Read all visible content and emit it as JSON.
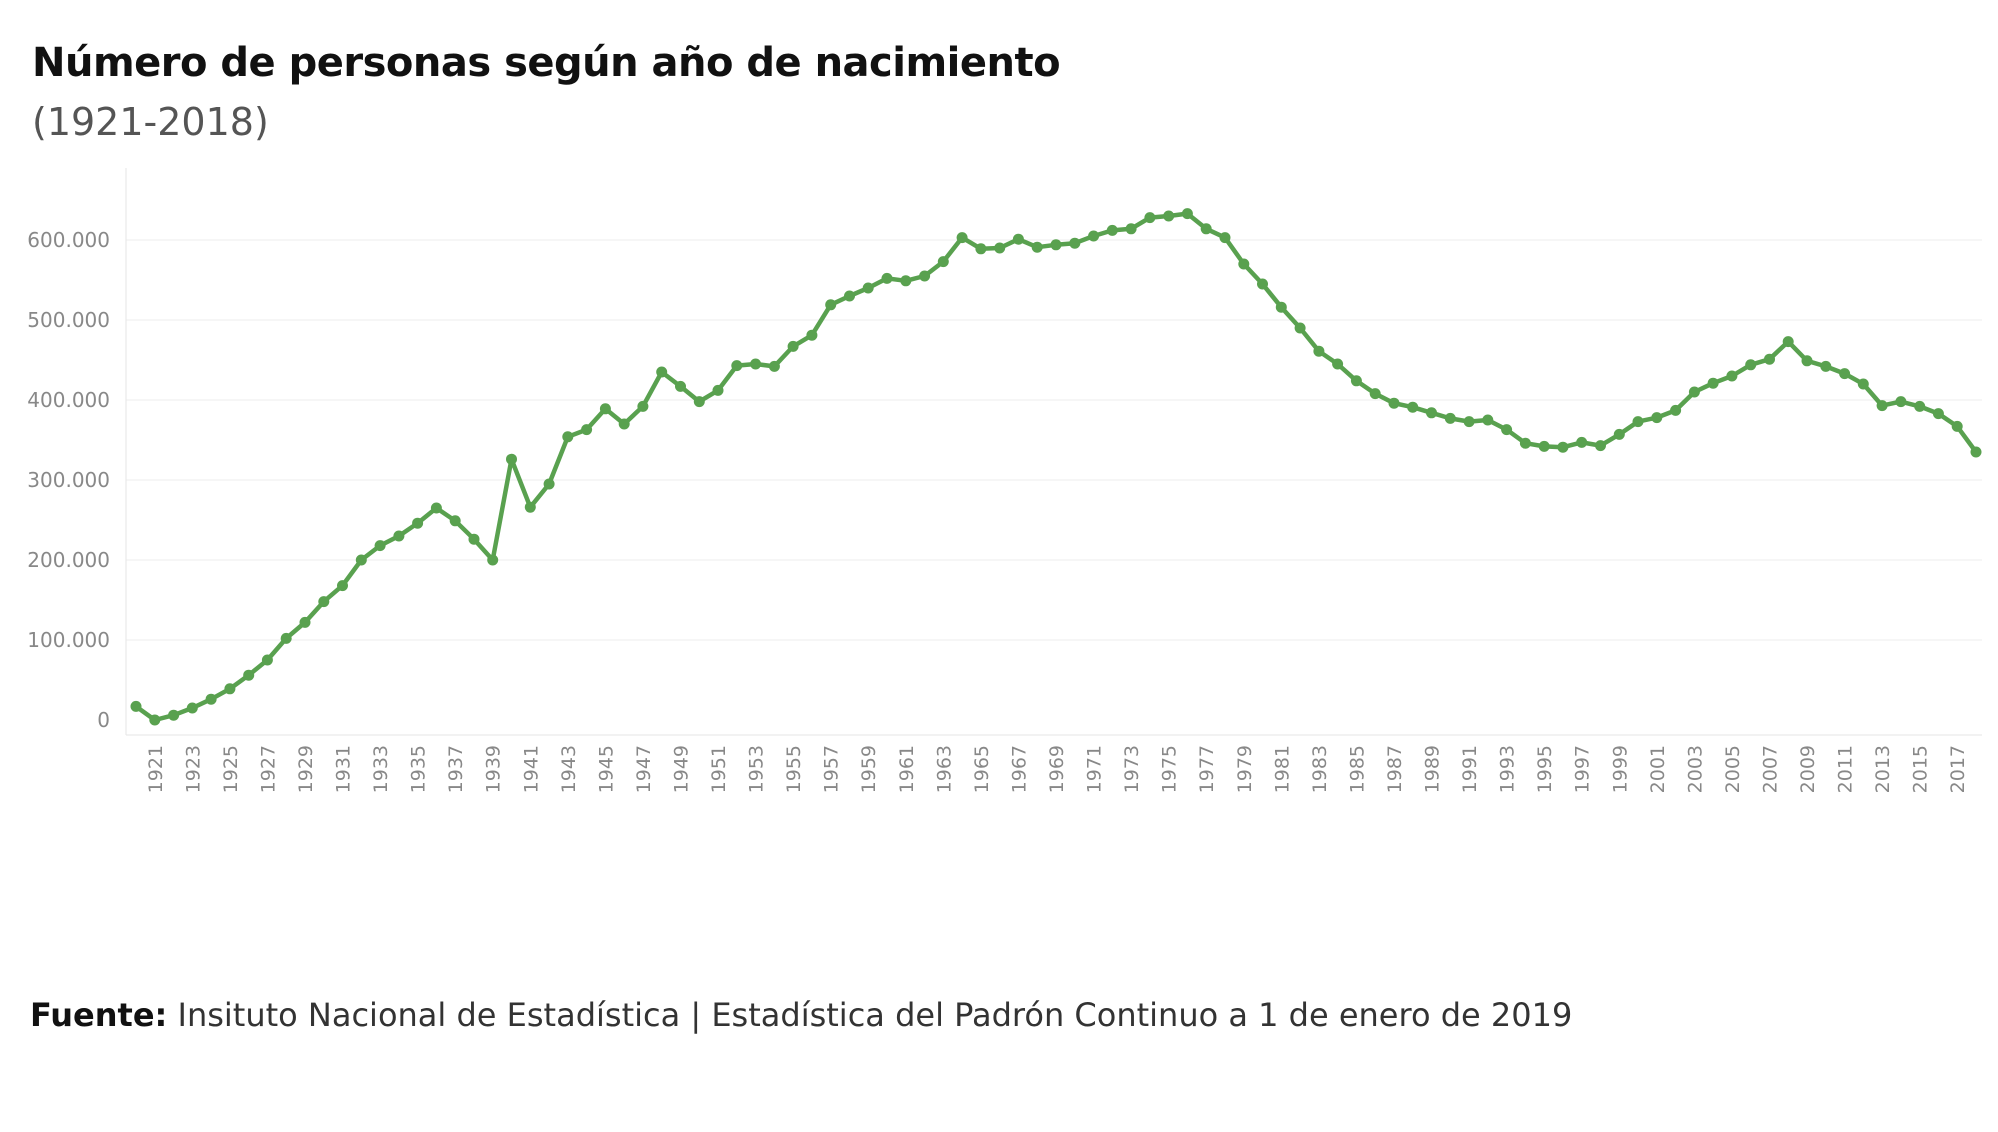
{
  "chart_data": {
    "type": "line",
    "title": "Número de personas según año de nacimiento",
    "subtitle": "(1921-2018)",
    "xlabel": "",
    "ylabel": "",
    "x": [
      1920,
      1921,
      1922,
      1923,
      1924,
      1925,
      1926,
      1927,
      1928,
      1929,
      1930,
      1931,
      1932,
      1933,
      1934,
      1935,
      1936,
      1937,
      1938,
      1939,
      1940,
      1941,
      1942,
      1943,
      1944,
      1945,
      1946,
      1947,
      1948,
      1949,
      1950,
      1951,
      1952,
      1953,
      1954,
      1955,
      1956,
      1957,
      1958,
      1959,
      1960,
      1961,
      1962,
      1963,
      1964,
      1965,
      1966,
      1967,
      1968,
      1969,
      1970,
      1971,
      1972,
      1973,
      1974,
      1975,
      1976,
      1977,
      1978,
      1979,
      1980,
      1981,
      1982,
      1983,
      1984,
      1985,
      1986,
      1987,
      1988,
      1989,
      1990,
      1991,
      1992,
      1993,
      1994,
      1995,
      1996,
      1997,
      1998,
      1999,
      2000,
      2001,
      2002,
      2003,
      2004,
      2005,
      2006,
      2007,
      2008,
      2009,
      2010,
      2011,
      2012,
      2013,
      2014,
      2015,
      2016,
      2017,
      2018
    ],
    "series": [
      {
        "values": [
          17000,
          0,
          6000,
          15000,
          26000,
          39000,
          56000,
          75000,
          102000,
          122000,
          148000,
          168000,
          200000,
          218000,
          230000,
          246000,
          265000,
          249000,
          226000,
          200000,
          326000,
          266000,
          295000,
          354000,
          363000,
          389000,
          370000,
          392000,
          435000,
          417000,
          398000,
          412000,
          443000,
          445000,
          442000,
          467000,
          481000,
          519000,
          530000,
          540000,
          552000,
          549000,
          555000,
          573000,
          603000,
          589000,
          590000,
          601000,
          591000,
          594000,
          596000,
          605000,
          612000,
          614000,
          628000,
          630000,
          633000,
          614000,
          603000,
          570000,
          545000,
          516000,
          490000,
          461000,
          445000,
          424000,
          408000,
          396000,
          391000,
          384000,
          377000,
          373000,
          375000,
          363000,
          346000,
          342000,
          341000,
          347000,
          343000,
          357000,
          373000,
          378000,
          387000,
          410000,
          421000,
          430000,
          444000,
          451000,
          473000,
          449000,
          442000,
          433000,
          420000,
          393000,
          398000,
          392000,
          383000,
          367000,
          335000
        ]
      }
    ],
    "ylim": [
      0,
      640000
    ],
    "yticks": [
      "0",
      "100.000",
      "200.000",
      "300.000",
      "400.000",
      "500.000",
      "600.000"
    ],
    "xticks": [
      "1921",
      "1923",
      "1925",
      "1927",
      "1929",
      "1931",
      "1933",
      "1935",
      "1937",
      "1939",
      "1941",
      "1943",
      "1945",
      "1947",
      "1949",
      "1951",
      "1953",
      "1955",
      "1957",
      "1959",
      "1961",
      "1963",
      "1965",
      "1967",
      "1969",
      "1971",
      "1973",
      "1975",
      "1977",
      "1979",
      "1981",
      "1983",
      "1985",
      "1987",
      "1989",
      "1991",
      "1993",
      "1995",
      "1997",
      "1999",
      "2001",
      "2003",
      "2005",
      "2007",
      "2009",
      "2011",
      "2013",
      "2015",
      "2017"
    ],
    "color": "#59a14f",
    "grid": true
  },
  "source": {
    "label": "Fuente:",
    "text": " Insituto Nacional de Estadística | Estadística del Padrón Continuo a 1 de enero de 2019"
  }
}
